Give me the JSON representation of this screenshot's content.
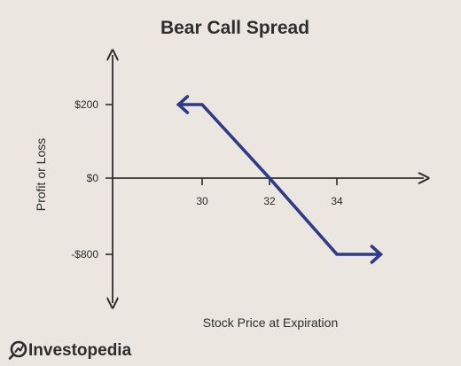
{
  "chart_data": {
    "type": "line",
    "title": "Bear Call Spread",
    "xlabel": "Stock Price at Expiration",
    "ylabel": "Profit or Loss",
    "x_ticks": [
      30,
      32,
      34
    ],
    "x_tick_labels": [
      "30",
      "32",
      "34"
    ],
    "y_ticks": [
      200,
      0,
      -800
    ],
    "y_tick_labels": [
      "$200",
      "$0",
      "-$800"
    ],
    "series": [
      {
        "x": [
          29.3,
          30,
          32,
          34,
          35.3
        ],
        "y": [
          200,
          200,
          0,
          -800,
          -800
        ],
        "color": "#2e3b86"
      }
    ],
    "arrows_on_ends": true,
    "grid": false,
    "legend": "none"
  },
  "brand": {
    "name": "Investopedia",
    "color": "#2d2d2d"
  },
  "colors": {
    "background": "#ebe6e0",
    "axis": "#2d2d2d",
    "line": "#2e3b86"
  }
}
